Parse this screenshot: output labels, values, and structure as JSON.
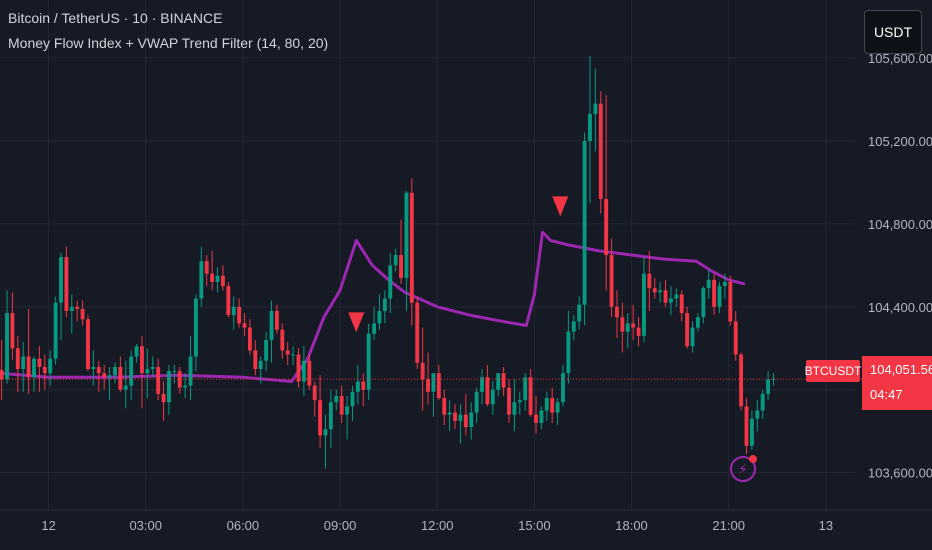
{
  "header": {
    "symbol_title": "Bitcoin / TetherUS · 10 · BINANCE",
    "indicator_title": "Money Flow Index + VWAP Trend Filter (14, 80, 20)"
  },
  "toolbar": {
    "currency_label": "USDT"
  },
  "price_scale": {
    "labels": [
      "105,600.00",
      "105,200.00",
      "104,800.00",
      "104,400.00",
      "103,600.00"
    ],
    "label_values": [
      105600,
      105200,
      104800,
      104400,
      103600
    ]
  },
  "last_price": {
    "symbol": "BTCUSDT",
    "price": "104,051.56",
    "value": 104051.56,
    "countdown": "04:47"
  },
  "time_axis": {
    "labels": [
      "12",
      "03:00",
      "06:00",
      "09:00",
      "12:00",
      "15:00",
      "18:00",
      "21:00",
      "13"
    ],
    "label_hours": [
      0,
      3,
      6,
      9,
      12,
      15,
      18,
      21,
      24
    ]
  },
  "colors": {
    "background": "#161a25",
    "up": "#089981",
    "down": "#f23645",
    "vwap": "#9c27b0",
    "grid": "#242733",
    "axis_text": "#b2b5be"
  },
  "alert": {
    "icon": "lightning-alert-icon"
  },
  "chart_data": {
    "type": "candlestick",
    "interval_minutes": 10,
    "y_range": [
      103420,
      105880
    ],
    "x_range_hours": [
      -1.5,
      24.9
    ],
    "grid": true,
    "ohlc": [
      [
        104095,
        104240,
        103950,
        104050
      ],
      [
        104050,
        104480,
        104030,
        104370
      ],
      [
        104370,
        104470,
        104145,
        104200
      ],
      [
        104200,
        104260,
        103990,
        104100
      ],
      [
        104100,
        104230,
        103990,
        104160
      ],
      [
        104160,
        104390,
        103980,
        104060
      ],
      [
        104060,
        104160,
        103990,
        104150
      ],
      [
        104150,
        104210,
        103990,
        104110
      ],
      [
        104110,
        104170,
        104000,
        104080
      ],
      [
        104080,
        104190,
        104020,
        104150
      ],
      [
        104150,
        104450,
        104120,
        104420
      ],
      [
        104420,
        104660,
        104240,
        104640
      ],
      [
        104640,
        104690,
        104350,
        104380
      ],
      [
        104380,
        104460,
        104270,
        104400
      ],
      [
        104400,
        104430,
        104330,
        104390
      ],
      [
        104390,
        104430,
        104310,
        104340
      ],
      [
        104340,
        104360,
        104090,
        104100
      ],
      [
        104100,
        104190,
        104020,
        104110
      ],
      [
        104110,
        104140,
        103990,
        104080
      ],
      [
        104080,
        104120,
        104000,
        104060
      ],
      [
        104060,
        104110,
        103950,
        104070
      ],
      [
        104070,
        104130,
        104030,
        104110
      ],
      [
        104110,
        104160,
        103990,
        104000
      ],
      [
        104000,
        104140,
        103910,
        104020
      ],
      [
        104020,
        104190,
        103950,
        104160
      ],
      [
        104160,
        104220,
        104130,
        104210
      ],
      [
        104210,
        104260,
        103910,
        104080
      ],
      [
        104080,
        104200,
        103960,
        104100
      ],
      [
        104100,
        104160,
        104060,
        104110
      ],
      [
        104110,
        104150,
        103950,
        103980
      ],
      [
        103980,
        104040,
        103850,
        103940
      ],
      [
        103940,
        104120,
        103880,
        104090
      ],
      [
        104090,
        104120,
        104030,
        104090
      ],
      [
        104090,
        104110,
        103980,
        104010
      ],
      [
        104010,
        104080,
        103960,
        104020
      ],
      [
        104020,
        104260,
        103950,
        104160
      ],
      [
        104160,
        104460,
        104090,
        104440
      ],
      [
        104440,
        104690,
        104400,
        104620
      ],
      [
        104620,
        104650,
        104500,
        104560
      ],
      [
        104560,
        104670,
        104480,
        104520
      ],
      [
        104520,
        104590,
        104470,
        104550
      ],
      [
        104550,
        104600,
        104480,
        104500
      ],
      [
        104500,
        104520,
        104350,
        104360
      ],
      [
        104360,
        104450,
        104290,
        104400
      ],
      [
        104400,
        104440,
        104300,
        104320
      ],
      [
        104320,
        104370,
        104260,
        104300
      ],
      [
        104300,
        104340,
        104170,
        104190
      ],
      [
        104190,
        104240,
        104070,
        104100
      ],
      [
        104100,
        104160,
        104030,
        104140
      ],
      [
        104140,
        104280,
        104090,
        104240
      ],
      [
        104240,
        104430,
        104130,
        104380
      ],
      [
        104380,
        104410,
        104270,
        104290
      ],
      [
        104290,
        104320,
        104150,
        104190
      ],
      [
        104190,
        104230,
        104120,
        104170
      ],
      [
        104170,
        104210,
        104120,
        104170
      ],
      [
        104170,
        104200,
        104010,
        104040
      ],
      [
        104040,
        104210,
        103970,
        104140
      ],
      [
        104140,
        104170,
        104000,
        104020
      ],
      [
        104020,
        104040,
        103870,
        103950
      ],
      [
        103950,
        104070,
        103720,
        103780
      ],
      [
        103780,
        103880,
        103620,
        103810
      ],
      [
        103810,
        104000,
        103720,
        103940
      ],
      [
        103940,
        104000,
        103900,
        103970
      ],
      [
        103970,
        104020,
        103840,
        103880
      ],
      [
        103880,
        103970,
        103760,
        103920
      ],
      [
        103920,
        104020,
        103850,
        103990
      ],
      [
        103990,
        104120,
        103930,
        104040
      ],
      [
        104040,
        104080,
        103920,
        104000
      ],
      [
        104000,
        104320,
        103950,
        104270
      ],
      [
        104270,
        104400,
        104240,
        104320
      ],
      [
        104320,
        104460,
        104290,
        104380
      ],
      [
        104380,
        104480,
        104320,
        104440
      ],
      [
        104440,
        104660,
        104370,
        104600
      ],
      [
        104600,
        104680,
        104570,
        104650
      ],
      [
        104650,
        104820,
        104510,
        104540
      ],
      [
        104540,
        104960,
        104380,
        104950
      ],
      [
        104950,
        105020,
        104310,
        104420
      ],
      [
        104420,
        104450,
        104100,
        104130
      ],
      [
        104130,
        104300,
        103900,
        104050
      ],
      [
        104050,
        104180,
        103930,
        103990
      ],
      [
        103990,
        104080,
        103870,
        104080
      ],
      [
        104080,
        104120,
        103950,
        103960
      ],
      [
        103960,
        104000,
        103830,
        103880
      ],
      [
        103880,
        103950,
        103800,
        103890
      ],
      [
        103890,
        103930,
        103810,
        103850
      ],
      [
        103850,
        103930,
        103740,
        103880
      ],
      [
        103880,
        103980,
        103780,
        103820
      ],
      [
        103820,
        103940,
        103760,
        103890
      ],
      [
        103890,
        104010,
        103840,
        103990
      ],
      [
        103990,
        104100,
        103930,
        104060
      ],
      [
        104060,
        104120,
        103920,
        103930
      ],
      [
        103930,
        104040,
        103880,
        104000
      ],
      [
        104000,
        104080,
        103970,
        104080
      ],
      [
        104080,
        104110,
        103970,
        104010
      ],
      [
        104010,
        104050,
        103840,
        103880
      ],
      [
        103880,
        104050,
        103800,
        103940
      ],
      [
        103940,
        103990,
        103880,
        103950
      ],
      [
        103950,
        104080,
        103900,
        104060
      ],
      [
        104060,
        104100,
        103870,
        103880
      ],
      [
        103880,
        103970,
        103790,
        103840
      ],
      [
        103840,
        103920,
        103810,
        103900
      ],
      [
        103900,
        103990,
        103850,
        103960
      ],
      [
        103960,
        104010,
        103840,
        103890
      ],
      [
        103890,
        103960,
        103830,
        103940
      ],
      [
        103940,
        104120,
        103920,
        104080
      ],
      [
        104080,
        104380,
        104030,
        104280
      ],
      [
        104280,
        104360,
        104240,
        104330
      ],
      [
        104330,
        104450,
        104290,
        104410
      ],
      [
        104410,
        105240,
        104310,
        105200
      ],
      [
        105200,
        105610,
        104900,
        105330
      ],
      [
        105330,
        105550,
        105150,
        105380
      ],
      [
        105380,
        105440,
        104850,
        104920
      ],
      [
        104920,
        105420,
        104480,
        104650
      ],
      [
        104650,
        104730,
        104350,
        104400
      ],
      [
        104400,
        104480,
        104250,
        104350
      ],
      [
        104350,
        104420,
        104180,
        104280
      ],
      [
        104280,
        104370,
        104200,
        104320
      ],
      [
        104320,
        104410,
        104240,
        104300
      ],
      [
        104300,
        104350,
        104210,
        104260
      ],
      [
        104260,
        104640,
        104230,
        104560
      ],
      [
        104560,
        104670,
        104380,
        104490
      ],
      [
        104490,
        104540,
        104440,
        104470
      ],
      [
        104470,
        104520,
        104420,
        104480
      ],
      [
        104480,
        104530,
        104400,
        104420
      ],
      [
        104420,
        104500,
        104360,
        104440
      ],
      [
        104440,
        104490,
        104400,
        104460
      ],
      [
        104460,
        104480,
        104330,
        104370
      ],
      [
        104370,
        104400,
        104200,
        104210
      ],
      [
        104210,
        104330,
        104180,
        104300
      ],
      [
        104300,
        104370,
        104280,
        104350
      ],
      [
        104350,
        104500,
        104320,
        104490
      ],
      [
        104490,
        104580,
        104440,
        104530
      ],
      [
        104530,
        104560,
        104360,
        104400
      ],
      [
        104400,
        104520,
        104370,
        104500
      ],
      [
        104500,
        104560,
        104440,
        104520
      ],
      [
        104520,
        104550,
        104310,
        104330
      ],
      [
        104330,
        104380,
        104140,
        104170
      ],
      [
        104170,
        104180,
        103900,
        103920
      ],
      [
        103920,
        103960,
        103690,
        103730
      ],
      [
        103730,
        103900,
        103710,
        103860
      ],
      [
        103860,
        103950,
        103800,
        103900
      ],
      [
        103900,
        104000,
        103860,
        103980
      ],
      [
        103980,
        104090,
        103950,
        104050
      ],
      [
        104050,
        104080,
        104020,
        104052
      ]
    ],
    "vwap": [
      [
        -1.5,
        104080
      ],
      [
        0,
        104060
      ],
      [
        2,
        104060
      ],
      [
        4,
        104070
      ],
      [
        6,
        104060
      ],
      [
        7.5,
        104040
      ],
      [
        8,
        104150
      ],
      [
        8.5,
        104350
      ],
      [
        9,
        104480
      ],
      [
        9.5,
        104720
      ],
      [
        10,
        104600
      ],
      [
        10.5,
        104530
      ],
      [
        11,
        104470
      ],
      [
        12,
        104400
      ],
      [
        13,
        104360
      ],
      [
        14,
        104330
      ],
      [
        14.75,
        104310
      ],
      [
        15,
        104460
      ],
      [
        15.25,
        104760
      ],
      [
        15.5,
        104720
      ],
      [
        16,
        104700
      ],
      [
        17,
        104670
      ],
      [
        18,
        104650
      ],
      [
        19,
        104630
      ],
      [
        20,
        104620
      ],
      [
        20.5,
        104570
      ],
      [
        21,
        104530
      ],
      [
        21.5,
        104510
      ]
    ],
    "sell_signals": [
      [
        9.5,
        104320
      ],
      [
        15.8,
        104880
      ]
    ]
  }
}
